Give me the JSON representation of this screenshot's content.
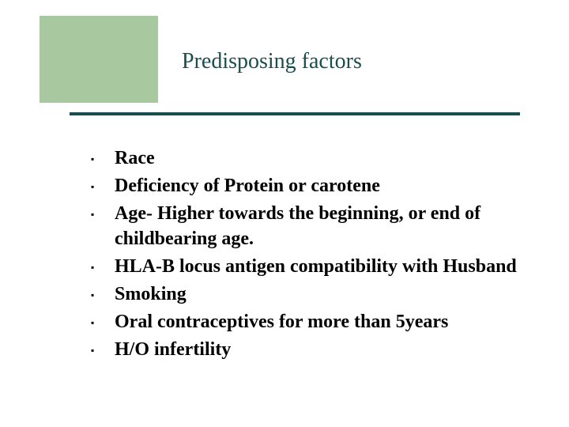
{
  "slide": {
    "title": "Predisposing factors",
    "title_color": "#1a4d4d",
    "title_fontsize": 28,
    "accent_box_color": "#a8c8a0",
    "divider_color": "#1a4d4d",
    "background_color": "#ffffff",
    "body_fontsize": 24,
    "body_color": "#000000",
    "body_weight": "bold",
    "bullet_char": "▪",
    "items": [
      {
        "text": "Race"
      },
      {
        "text": "Deficiency of Protein or carotene"
      },
      {
        "text": "Age- Higher towards the beginning, or end of childbearing age."
      },
      {
        "text": "HLA-B locus antigen compatibility with Husband"
      },
      {
        "text": "Smoking"
      },
      {
        "text": "Oral contraceptives for more than 5years"
      },
      {
        "text": "H/O infertility"
      }
    ]
  }
}
